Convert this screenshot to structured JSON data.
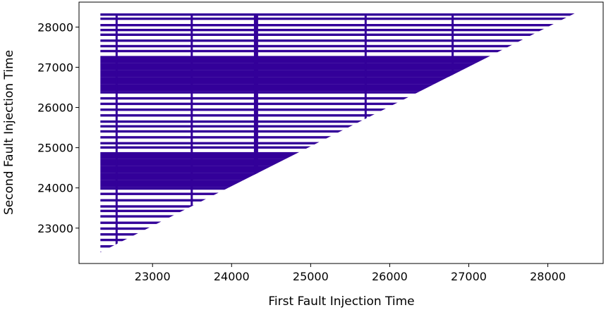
{
  "chart_data": {
    "type": "scatter",
    "xlabel": "First Fault Injection Time",
    "ylabel": "Second Fault Injection Time",
    "xlim": [
      22070,
      28700
    ],
    "ylim": [
      22120,
      28620
    ],
    "xticks": [
      23000,
      24000,
      25000,
      26000,
      27000,
      28000
    ],
    "yticks": [
      23000,
      24000,
      25000,
      26000,
      27000,
      28000
    ],
    "x_range": [
      22340,
      28350
    ],
    "y_range": [
      22400,
      28340
    ],
    "constraint": "y >= x",
    "marker_color": "#330099",
    "grid": false,
    "legend": "none"
  }
}
